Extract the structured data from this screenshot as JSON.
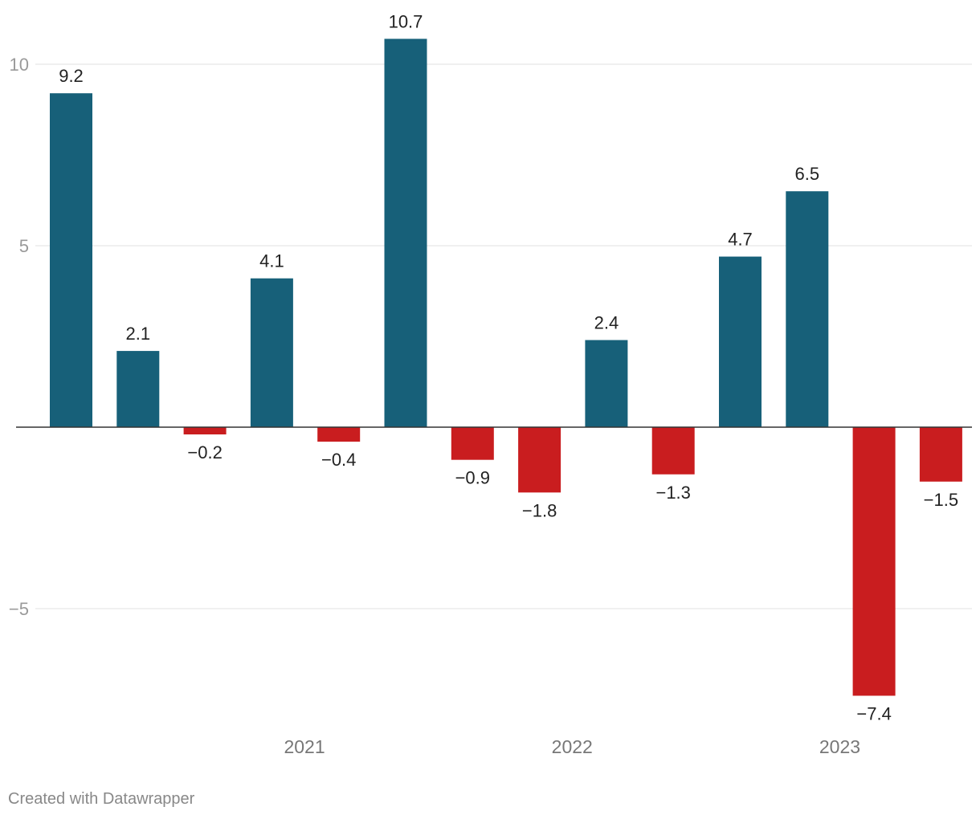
{
  "chart_data": {
    "type": "bar",
    "title": "",
    "xlabel": "",
    "ylabel": "",
    "ylim": [
      -8.6,
      11.2
    ],
    "y_ticks": [
      {
        "value": 10,
        "label": "10"
      },
      {
        "value": 5,
        "label": "5"
      },
      {
        "value": -5,
        "label": "−5"
      }
    ],
    "values": [
      9.2,
      2.1,
      -0.2,
      4.1,
      -0.4,
      10.7,
      -0.9,
      -1.8,
      2.4,
      -1.3,
      4.7,
      6.5,
      -7.4,
      -1.5
    ],
    "value_labels": [
      "9.2",
      "2.1",
      "−0.2",
      "4.1",
      "−0.4",
      "10.7",
      "−0.9",
      "−1.8",
      "2.4",
      "−1.3",
      "4.7",
      "6.5",
      "−7.4",
      "−1.5"
    ],
    "x_ticks": [
      {
        "after_bar_index": 3,
        "label": "2021"
      },
      {
        "after_bar_index": 7,
        "label": "2022"
      },
      {
        "after_bar_index": 11,
        "label": "2023"
      }
    ],
    "grid": true,
    "legend": "none",
    "colors": {
      "positive": "#176079",
      "negative": "#c91d1f"
    }
  },
  "footer": {
    "credit": "Created with Datawrapper"
  }
}
